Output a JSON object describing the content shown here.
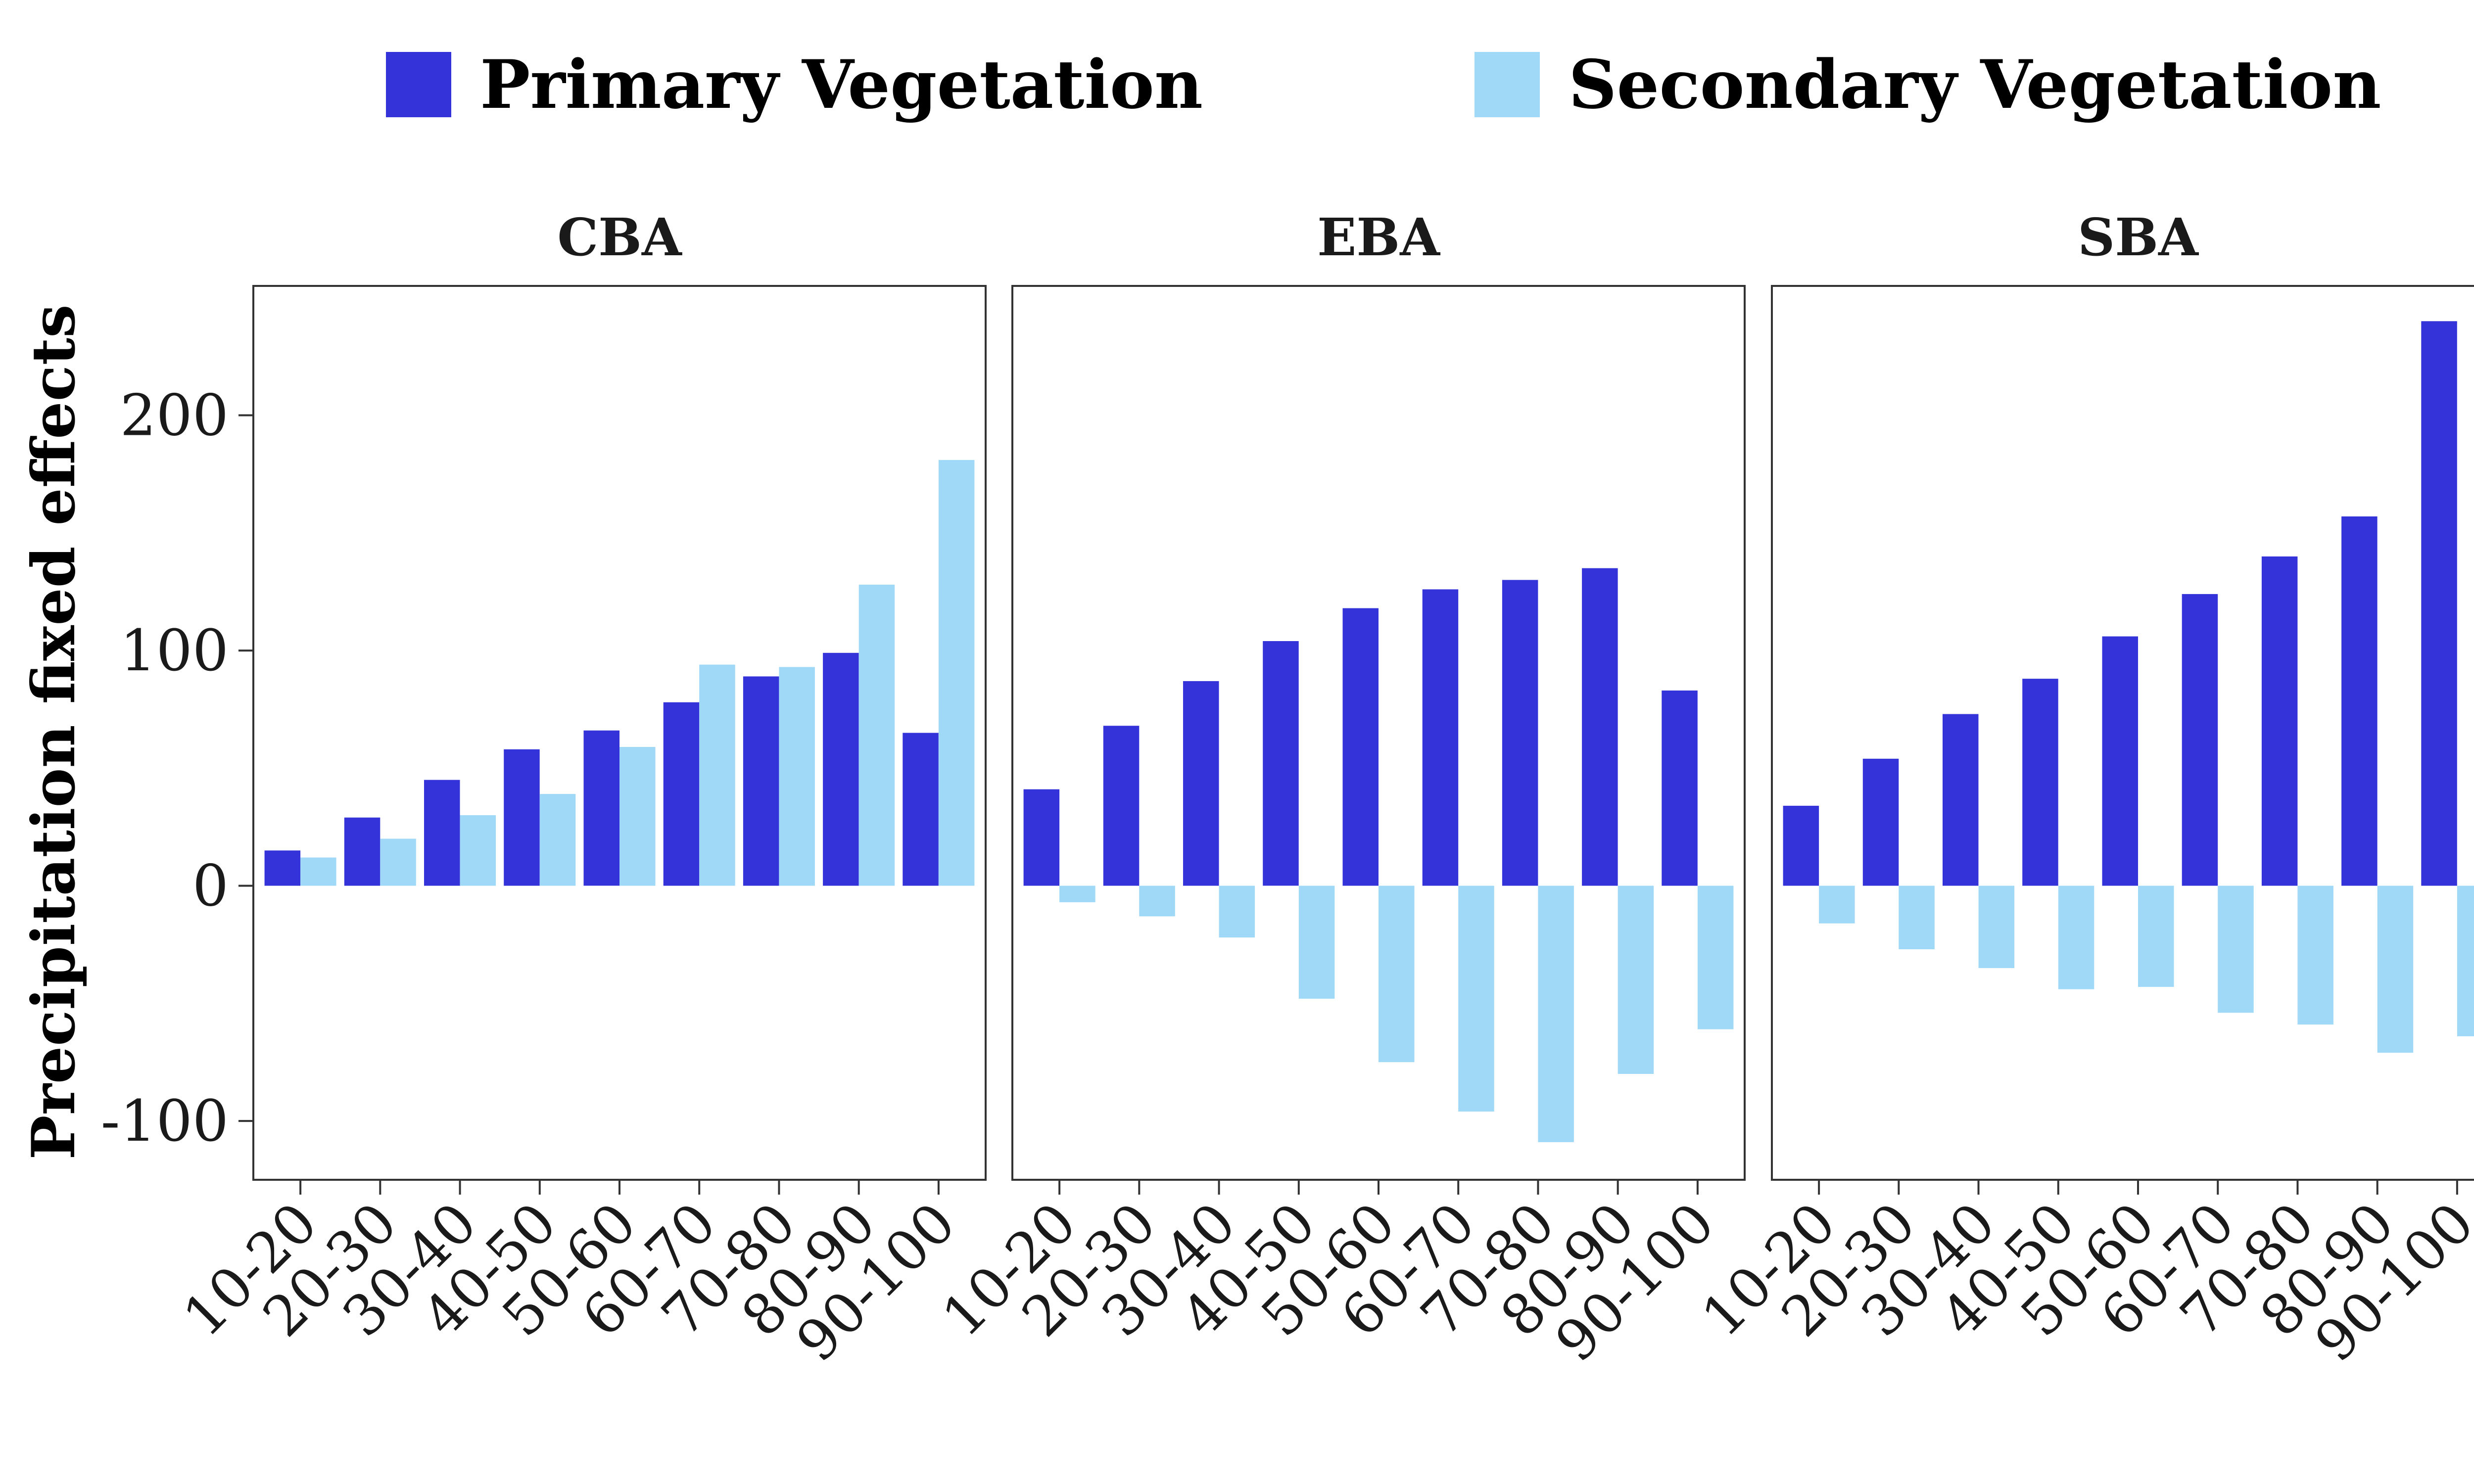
{
  "chart_data": {
    "type": "bar",
    "ylabel": "Precipitation fixed effects",
    "xlabel": "",
    "ylim": [
      -125,
      255
    ],
    "yticks": [
      -100,
      0,
      100,
      200
    ],
    "ytick_labels": [
      "-100",
      "0",
      "100",
      "200"
    ],
    "categories": [
      "10-20",
      "20-30",
      "30-40",
      "40-50",
      "50-60",
      "60-70",
      "70-80",
      "80-90",
      "90-100"
    ],
    "legend": {
      "position": "top",
      "entries": [
        {
          "name": "Primary Vegetation",
          "color": "#3333d9"
        },
        {
          "name": "Secondary Vegetation",
          "color": "#a0d8f8"
        }
      ]
    },
    "panels": [
      {
        "title": "CBA",
        "series": [
          {
            "name": "Primary Vegetation",
            "values": [
              15,
              29,
              45,
              58,
              66,
              78,
              89,
              99,
              65
            ]
          },
          {
            "name": "Secondary Vegetation",
            "values": [
              12,
              20,
              30,
              39,
              59,
              94,
              93,
              128,
              181
            ]
          }
        ]
      },
      {
        "title": "EBA",
        "series": [
          {
            "name": "Primary Vegetation",
            "values": [
              41,
              68,
              87,
              104,
              118,
              126,
              130,
              135,
              83
            ]
          },
          {
            "name": "Secondary Vegetation",
            "values": [
              -7,
              -13,
              -22,
              -48,
              -75,
              -96,
              -109,
              -80,
              -61
            ]
          }
        ]
      },
      {
        "title": "SBA",
        "series": [
          {
            "name": "Primary Vegetation",
            "values": [
              34,
              54,
              73,
              88,
              106,
              124,
              140,
              157,
              240
            ]
          },
          {
            "name": "Secondary Vegetation",
            "values": [
              -16,
              -27,
              -35,
              -44,
              -43,
              -54,
              -59,
              -71,
              -64
            ]
          }
        ]
      }
    ]
  }
}
